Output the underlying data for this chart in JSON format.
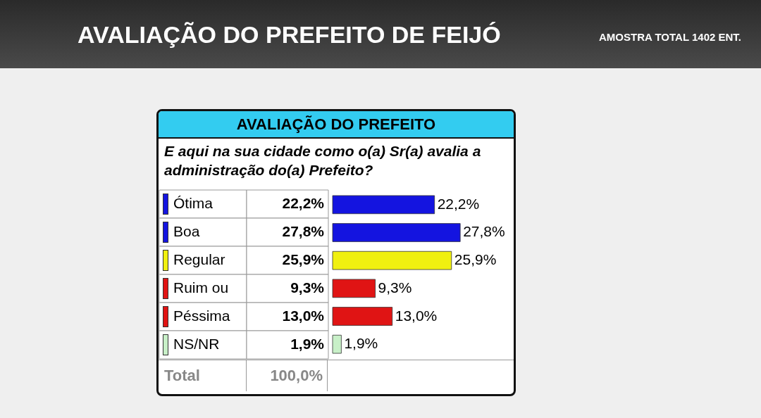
{
  "chart_data": {
    "type": "bar",
    "orientation": "horizontal",
    "title": "AVALIAÇÃO DO PREFEITO DE FEIJÓ",
    "subtitle": "AVALIAÇÃO DO PREFEITO",
    "annotations": [
      "AMOSTRA TOTAL 1402 ENT.",
      "E aqui na sua cidade como o(a) Sr(a) avalia a administração do(a) Prefeito?",
      "Total",
      "100,0%"
    ],
    "categories": [
      "Ótima",
      "Boa",
      "Regular",
      "Ruim ou",
      "Péssima",
      "NS/NR"
    ],
    "values": [
      22.2,
      27.8,
      25.9,
      9.3,
      13.0,
      1.9
    ],
    "colors": [
      "#1414e0",
      "#1414e0",
      "#f0f010",
      "#e01414",
      "#e01414",
      "#c8f0c8"
    ],
    "value_labels": [
      "22,2%",
      "27,8%",
      "25,9%",
      "9,3%",
      "13,0%",
      "1,9%"
    ]
  }
}
